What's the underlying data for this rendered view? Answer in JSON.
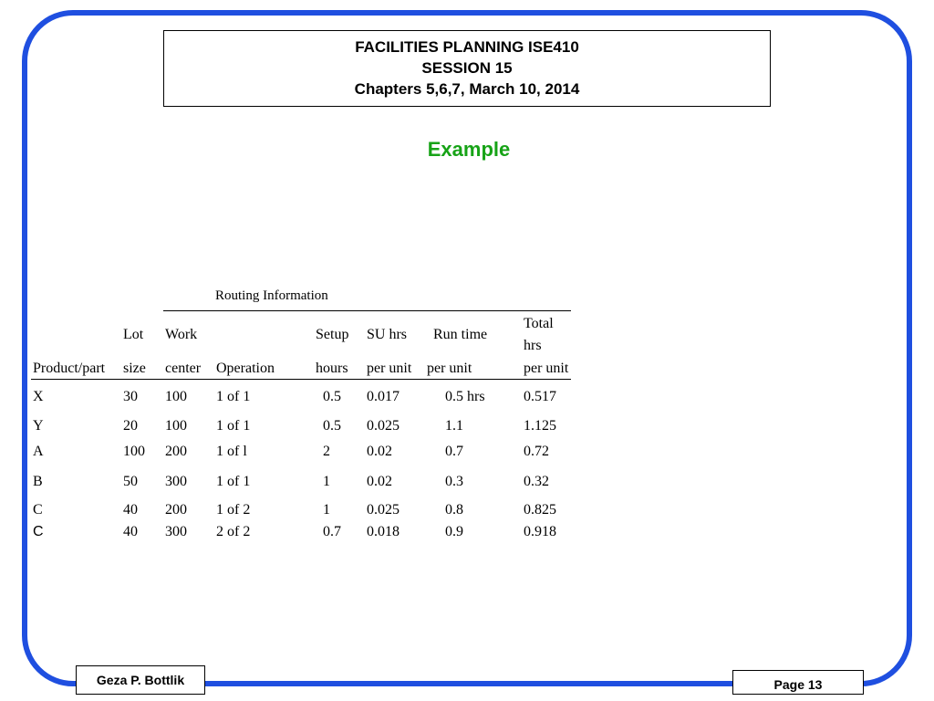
{
  "header": {
    "line1": "FACILITIES PLANNING ISE410",
    "line2": "SESSION 15",
    "line3": "Chapters 5,6,7, March 10, 2014"
  },
  "slide_title": "Example",
  "routing_table": {
    "caption": "Routing Information",
    "headers": {
      "product": [
        "",
        "",
        "Product/part"
      ],
      "lot": [
        "",
        "Lot",
        "size"
      ],
      "work": [
        "",
        "Work",
        "center"
      ],
      "operation": [
        "",
        "",
        "Operation"
      ],
      "setup": [
        "",
        "Setup",
        "hours"
      ],
      "su": [
        "",
        "SU hrs",
        "per unit"
      ],
      "run": [
        "",
        "Run time",
        "per unit"
      ],
      "total": [
        "Total",
        "hrs",
        "per unit"
      ]
    },
    "rows": [
      [
        "X",
        "30",
        "100",
        "1 of 1",
        "0.5",
        "0.017",
        "0.5 hrs",
        "0.517"
      ],
      [
        "Y",
        "20",
        "100",
        "1 of 1",
        "0.5",
        "0.025",
        "1.1",
        "1.125"
      ],
      [
        "A",
        "100",
        "200",
        "1 of l",
        "2",
        "0.02",
        "0.7",
        "0.72"
      ],
      [
        "B",
        "50",
        "300",
        "1 of 1",
        "1",
        "0.02",
        "0.3",
        "0.32"
      ],
      [
        "C",
        "40",
        "200",
        "1 of 2",
        "1",
        "0.025",
        "0.8",
        "0.825"
      ],
      [
        "C",
        "40",
        "300",
        "2 of 2",
        "0.7",
        "0.018",
        "0.9",
        "0.918"
      ]
    ]
  },
  "footer": {
    "author": "Geza P. Bottlik",
    "page": "Page 13"
  },
  "colors": {
    "frame": "#1f4fe0",
    "title": "#17a317"
  }
}
